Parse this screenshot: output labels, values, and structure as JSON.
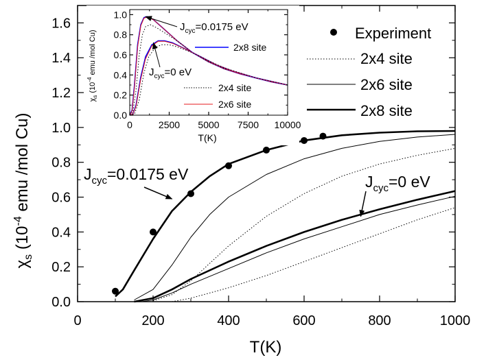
{
  "chart_data": [
    {
      "type": "line",
      "name": "main",
      "xlabel": "T(K)",
      "ylabel": {
        "base": "χ",
        "sub": "s",
        "pre": " (10",
        "sup": "-4",
        "post": " emu /mol Cu)"
      },
      "xlim": [
        0,
        1000
      ],
      "ylim": [
        0.0,
        1.7
      ],
      "xticks": [
        0,
        200,
        400,
        600,
        800,
        1000
      ],
      "xtick_labels": [
        "0",
        "200",
        "400",
        "600",
        "800",
        "1000"
      ],
      "yticks": [
        0.0,
        0.2,
        0.4,
        0.6,
        0.8,
        1.0,
        1.2,
        1.4,
        1.6
      ],
      "ytick_labels": [
        "0.0",
        "0.2",
        "0.4",
        "0.6",
        "0.8",
        "1.0",
        "1.2",
        "1.4",
        "1.6"
      ],
      "legend": [
        {
          "label": "Experiment",
          "style": "marker"
        },
        {
          "label": "2x4 site",
          "style": "dotted"
        },
        {
          "label": "2x6 site",
          "style": "thin"
        },
        {
          "label": "2x8 site",
          "style": "thick"
        }
      ],
      "experiment": {
        "x": [
          100,
          200,
          300,
          400,
          500,
          600,
          650
        ],
        "y": [
          0.06,
          0.4,
          0.62,
          0.78,
          0.87,
          0.925,
          0.95
        ]
      },
      "series": [
        {
          "name": "Jcyc=0.0175 eV, 2x8 site",
          "style": "thick",
          "x": [
            100,
            120,
            150,
            200,
            250,
            300,
            350,
            400,
            500,
            600,
            700,
            800,
            900,
            1000
          ],
          "y": [
            0.03,
            0.07,
            0.18,
            0.36,
            0.52,
            0.63,
            0.72,
            0.79,
            0.87,
            0.925,
            0.955,
            0.97,
            0.978,
            0.98
          ]
        },
        {
          "name": "Jcyc=0.0175 eV, 2x6 site",
          "style": "thin",
          "x": [
            150,
            200,
            250,
            300,
            350,
            400,
            500,
            600,
            700,
            800,
            900,
            1000
          ],
          "y": [
            0.01,
            0.07,
            0.21,
            0.37,
            0.5,
            0.6,
            0.73,
            0.82,
            0.88,
            0.92,
            0.945,
            0.96
          ]
        },
        {
          "name": "Jcyc=0.0175 eV, 2x4 site",
          "style": "dotted",
          "x": [
            200,
            250,
            300,
            350,
            400,
            500,
            600,
            700,
            800,
            900,
            1000
          ],
          "y": [
            0.005,
            0.04,
            0.12,
            0.22,
            0.32,
            0.49,
            0.62,
            0.72,
            0.79,
            0.84,
            0.88
          ]
        },
        {
          "name": "Jcyc=0 eV, 2x8 site",
          "style": "thick",
          "x": [
            150,
            200,
            250,
            300,
            400,
            500,
            600,
            700,
            800,
            900,
            1000
          ],
          "y": [
            0.0,
            0.02,
            0.07,
            0.13,
            0.23,
            0.32,
            0.4,
            0.47,
            0.53,
            0.585,
            0.635
          ]
        },
        {
          "name": "Jcyc=0 eV, 2x6 site",
          "style": "thin",
          "x": [
            170,
            200,
            250,
            300,
            400,
            500,
            600,
            700,
            800,
            900,
            1000
          ],
          "y": [
            0.0,
            0.01,
            0.05,
            0.1,
            0.19,
            0.28,
            0.36,
            0.43,
            0.5,
            0.555,
            0.605
          ]
        },
        {
          "name": "Jcyc=0 eV, 2x4 site",
          "style": "dotted",
          "x": [
            250,
            300,
            400,
            500,
            600,
            700,
            800,
            900,
            1000
          ],
          "y": [
            0.0,
            0.02,
            0.08,
            0.15,
            0.23,
            0.31,
            0.39,
            0.47,
            0.54
          ]
        }
      ],
      "annotations": [
        {
          "text_main": "J",
          "text_sub": "cyc",
          "text_rest": "=0.0175 eV",
          "arrow_to": [
            250,
            0.59
          ]
        },
        {
          "text_main": "J",
          "text_sub": "cyc",
          "text_rest": "=0 eV",
          "arrow_to": [
            750,
            0.49
          ]
        }
      ]
    },
    {
      "type": "line",
      "name": "inset",
      "xlabel": "T(K)",
      "ylabel": {
        "base": "χ",
        "sub": "s",
        "pre": " (10",
        "sup": "-4",
        "post": " emu /mol Cu)"
      },
      "xlim": [
        0,
        10000
      ],
      "ylim": [
        0.0,
        1.05
      ],
      "xticks": [
        0,
        2500,
        5000,
        7500,
        10000
      ],
      "xtick_labels": [
        "0",
        "2500",
        "5000",
        "7500",
        "10000"
      ],
      "yticks": [
        0.0,
        0.2,
        0.4,
        0.6,
        0.8,
        1.0
      ],
      "ytick_labels": [
        "0.0",
        "0.2",
        "0.4",
        "0.6",
        "0.8",
        "1.0"
      ],
      "legend": [
        {
          "label": "2x8 site",
          "style": "blue"
        },
        {
          "label": "2x4 site",
          "style": "dotted"
        },
        {
          "label": "2x6 site",
          "style": "red"
        }
      ],
      "series": [
        {
          "name": "Jcyc=0.0175 eV, 2x8 site",
          "style": "blue",
          "x": [
            0,
            150,
            300,
            500,
            700,
            900,
            1100,
            1500,
            2000,
            2500,
            3000,
            4000,
            5000,
            6000,
            7000,
            8000,
            9000,
            10000
          ],
          "y": [
            0.0,
            0.05,
            0.3,
            0.7,
            0.9,
            0.97,
            0.98,
            0.95,
            0.88,
            0.81,
            0.74,
            0.62,
            0.53,
            0.46,
            0.41,
            0.37,
            0.33,
            0.3
          ]
        },
        {
          "name": "Jcyc=0.0175 eV, 2x6 site",
          "style": "red",
          "x": [
            0,
            150,
            300,
            500,
            700,
            900,
            1100,
            1500,
            2000,
            2500,
            3000,
            4000,
            5000,
            6000,
            7000,
            8000,
            9000,
            10000
          ],
          "y": [
            0.0,
            0.04,
            0.28,
            0.68,
            0.89,
            0.965,
            0.975,
            0.95,
            0.88,
            0.81,
            0.74,
            0.62,
            0.53,
            0.46,
            0.41,
            0.37,
            0.33,
            0.3
          ]
        },
        {
          "name": "Jcyc=0.0175 eV, 2x4 site",
          "style": "dotted",
          "x": [
            0,
            200,
            400,
            600,
            800,
            1000,
            1300,
            1700,
            2200,
            3000,
            4000,
            5000,
            6000,
            8000,
            10000
          ],
          "y": [
            0.0,
            0.03,
            0.25,
            0.6,
            0.8,
            0.88,
            0.9,
            0.87,
            0.82,
            0.74,
            0.62,
            0.53,
            0.46,
            0.37,
            0.3
          ]
        },
        {
          "name": "Jcyc=0 eV, 2x8 site",
          "style": "blue",
          "x": [
            0,
            200,
            400,
            700,
            1000,
            1400,
            1800,
            2200,
            2700,
            3500,
            4500,
            5500,
            6500,
            8000,
            10000
          ],
          "y": [
            0.0,
            0.01,
            0.1,
            0.38,
            0.58,
            0.7,
            0.74,
            0.74,
            0.72,
            0.66,
            0.58,
            0.5,
            0.44,
            0.37,
            0.3
          ]
        },
        {
          "name": "Jcyc=0 eV, 2x6 site",
          "style": "red",
          "x": [
            0,
            200,
            400,
            700,
            1000,
            1400,
            1800,
            2200,
            2700,
            3500,
            4500,
            5500,
            6500,
            8000,
            10000
          ],
          "y": [
            0.0,
            0.01,
            0.09,
            0.36,
            0.56,
            0.69,
            0.735,
            0.735,
            0.715,
            0.66,
            0.58,
            0.5,
            0.44,
            0.37,
            0.3
          ]
        },
        {
          "name": "Jcyc=0 eV, 2x4 site",
          "style": "dotted",
          "x": [
            0,
            300,
            600,
            900,
            1200,
            1600,
            2000,
            2500,
            3000,
            4000,
            5000,
            6000,
            8000,
            10000
          ],
          "y": [
            0.0,
            0.01,
            0.15,
            0.42,
            0.58,
            0.67,
            0.7,
            0.7,
            0.68,
            0.62,
            0.54,
            0.47,
            0.37,
            0.3
          ]
        }
      ],
      "annotations": [
        {
          "text_main": "J",
          "text_sub": "cyc",
          "text_rest": "=0.0175 eV",
          "arrow_to": [
            1000,
            0.98
          ]
        },
        {
          "text_main": "J",
          "text_sub": "cyc",
          "text_rest": "=0 eV",
          "arrow_to": [
            1500,
            0.72
          ]
        }
      ]
    }
  ]
}
